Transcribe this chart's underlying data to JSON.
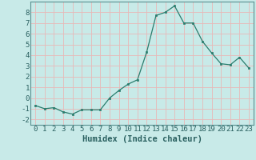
{
  "x": [
    0,
    1,
    2,
    3,
    4,
    5,
    6,
    7,
    8,
    9,
    10,
    11,
    12,
    13,
    14,
    15,
    16,
    17,
    18,
    19,
    20,
    21,
    22,
    23
  ],
  "y": [
    -0.7,
    -1.0,
    -0.9,
    -1.3,
    -1.5,
    -1.1,
    -1.1,
    -1.1,
    0.0,
    0.7,
    1.3,
    1.7,
    4.3,
    7.7,
    8.0,
    8.6,
    7.0,
    7.0,
    5.3,
    4.2,
    3.2,
    3.1,
    3.8,
    2.8
  ],
  "line_color": "#2a7d6e",
  "marker_color": "#2a7d6e",
  "bg_color": "#c8eae8",
  "grid_color": "#e8b8b8",
  "xlabel": "Humidex (Indice chaleur)",
  "xlim": [
    -0.5,
    23.5
  ],
  "ylim": [
    -2.5,
    9.0
  ],
  "yticks": [
    -2,
    -1,
    0,
    1,
    2,
    3,
    4,
    5,
    6,
    7,
    8
  ],
  "xticks": [
    0,
    1,
    2,
    3,
    4,
    5,
    6,
    7,
    8,
    9,
    10,
    11,
    12,
    13,
    14,
    15,
    16,
    17,
    18,
    19,
    20,
    21,
    22,
    23
  ],
  "tick_color": "#2a6060",
  "label_color": "#2a6060",
  "font_size": 6.5,
  "xlabel_font_size": 7.5
}
